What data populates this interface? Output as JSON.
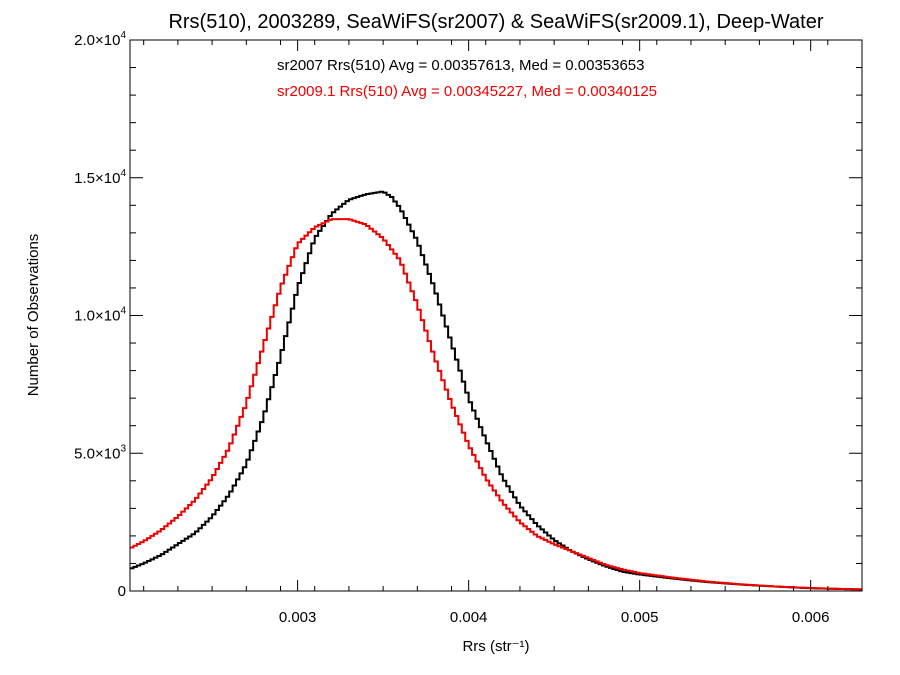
{
  "chart_data": {
    "type": "line",
    "title": "Rrs(510), 2003289, SeaWiFS(sr2007) & SeaWiFS(sr2009.1), Deep-Water",
    "xlabel": "Rrs (str⁻¹)",
    "ylabel": "Number of Observations",
    "xlim": [
      0.00202,
      0.0063
    ],
    "ylim": [
      0,
      20000
    ],
    "x_ticks": [
      0.003,
      0.004,
      0.005,
      0.006
    ],
    "x_tick_labels": [
      "0.003",
      "0.004",
      "0.005",
      "0.006"
    ],
    "y_ticks": [
      0,
      5000,
      10000,
      15000,
      20000
    ],
    "y_tick_labels": [
      {
        "mantissa": "0",
        "exponent": ""
      },
      {
        "mantissa": "5.0×10",
        "exponent": "3"
      },
      {
        "mantissa": "1.0×10",
        "exponent": "4"
      },
      {
        "mantissa": "1.5×10",
        "exponent": "4"
      },
      {
        "mantissa": "2.0×10",
        "exponent": "4"
      }
    ],
    "grid": false,
    "legend": "top-center",
    "annotations": [
      {
        "text": "sr2007 Rrs(510) Avg = 0.00357613, Med = 0.00353653",
        "color": "#000000"
      },
      {
        "text": "sr2009.1 Rrs(510) Avg = 0.00345227, Med = 0.00340125",
        "color": "#ee0000"
      }
    ],
    "series": [
      {
        "color": "#000000",
        "x": [
          0.00202,
          0.0021,
          0.0022,
          0.0023,
          0.0024,
          0.0025,
          0.0026,
          0.0027,
          0.0028,
          0.0029,
          0.003,
          0.0031,
          0.0032,
          0.0033,
          0.0034,
          0.0035,
          0.00355,
          0.0036,
          0.0037,
          0.0038,
          0.0039,
          0.004,
          0.0041,
          0.0042,
          0.0043,
          0.0044,
          0.0045,
          0.0046,
          0.0047,
          0.0048,
          0.0049,
          0.005,
          0.0052,
          0.0054,
          0.0056,
          0.0058,
          0.006,
          0.0062,
          0.0063
        ],
        "y": [
          800,
          1000,
          1300,
          1700,
          2100,
          2700,
          3500,
          4600,
          6300,
          8500,
          11000,
          12800,
          13700,
          14200,
          14400,
          14500,
          14300,
          13900,
          12700,
          11000,
          9000,
          7000,
          5500,
          4100,
          3100,
          2400,
          1850,
          1450,
          1150,
          900,
          700,
          600,
          450,
          320,
          230,
          160,
          100,
          70,
          60
        ]
      },
      {
        "color": "#ee0000",
        "x": [
          0.00202,
          0.0021,
          0.0022,
          0.0023,
          0.0024,
          0.0025,
          0.0026,
          0.0027,
          0.0028,
          0.0029,
          0.003,
          0.0031,
          0.0032,
          0.0033,
          0.0034,
          0.0035,
          0.0036,
          0.0037,
          0.0038,
          0.0039,
          0.004,
          0.0041,
          0.0042,
          0.0043,
          0.0044,
          0.0045,
          0.0046,
          0.0047,
          0.0048,
          0.0049,
          0.005,
          0.0052,
          0.0054,
          0.0056,
          0.0058,
          0.006,
          0.0062,
          0.0063
        ],
        "y": [
          1550,
          1800,
          2200,
          2700,
          3300,
          4100,
          5200,
          6800,
          8900,
          11000,
          12600,
          13200,
          13500,
          13500,
          13300,
          12800,
          12000,
          10400,
          8500,
          6800,
          5300,
          4100,
          3200,
          2500,
          2000,
          1700,
          1450,
          1200,
          950,
          780,
          650,
          480,
          340,
          240,
          160,
          110,
          70,
          60
        ]
      }
    ]
  }
}
